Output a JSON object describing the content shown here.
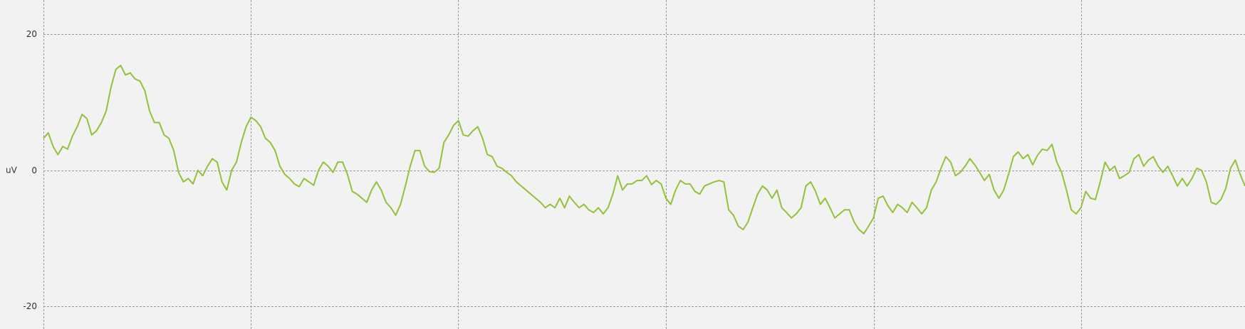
{
  "chart_data": {
    "type": "line",
    "ylabel": "uV",
    "ylim": [
      -23.3,
      25
    ],
    "yticks": [
      -20,
      0,
      20
    ],
    "grid": true,
    "series": [
      {
        "color": "#94c13a",
        "values": [
          4.7,
          5.5,
          3.5,
          2.3,
          3.5,
          3.1,
          5.0,
          6.4,
          8.2,
          7.6,
          5.2,
          5.8,
          7.0,
          8.7,
          12.2,
          14.8,
          15.4,
          14.0,
          14.3,
          13.4,
          13.1,
          11.7,
          8.7,
          7.0,
          7.0,
          5.2,
          4.7,
          2.9,
          -0.3,
          -1.7,
          -1.2,
          -2.0,
          0,
          -0.8,
          0.6,
          1.7,
          1.2,
          -1.7,
          -2.9,
          0,
          1.2,
          4.1,
          6.4,
          7.8,
          7.3,
          6.4,
          4.7,
          4.1,
          2.9,
          0.6,
          -0.6,
          -1.2,
          -2.0,
          -2.4,
          -1.2,
          -1.7,
          -2.2,
          0,
          1.2,
          0.6,
          -0.3,
          1.2,
          1.2,
          -0.6,
          -3.1,
          -3.5,
          -4.1,
          -4.7,
          -2.9,
          -1.7,
          -2.9,
          -4.7,
          -5.5,
          -6.6,
          -5.0,
          -2.3,
          0.6,
          2.9,
          2.9,
          0.6,
          -0.2,
          -0.3,
          0.3,
          4.1,
          5.2,
          6.6,
          7.3,
          5.2,
          5.0,
          5.8,
          6.4,
          4.7,
          2.3,
          2.0,
          0.6,
          0.3,
          -0.3,
          -0.8,
          -1.7,
          -2.3,
          -2.9,
          -3.5,
          -4.1,
          -4.7,
          -5.5,
          -5.0,
          -5.5,
          -4.1,
          -5.5,
          -3.8,
          -4.7,
          -5.5,
          -5.0,
          -5.8,
          -6.2,
          -5.5,
          -6.4,
          -5.5,
          -3.5,
          -0.8,
          -2.9,
          -2.0,
          -2.0,
          -1.5,
          -1.5,
          -0.8,
          -2.1,
          -1.5,
          -2.0,
          -4.1,
          -5.0,
          -2.9,
          -1.5,
          -2.0,
          -2.0,
          -3.1,
          -3.5,
          -2.3,
          -2.0,
          -1.7,
          -1.5,
          -1.7,
          -5.8,
          -6.6,
          -8.2,
          -8.7,
          -7.6,
          -5.5,
          -3.5,
          -2.3,
          -2.9,
          -4.1,
          -2.9,
          -5.5,
          -6.2,
          -7.0,
          -6.4,
          -5.5,
          -2.3,
          -1.7,
          -3.1,
          -5.0,
          -4.1,
          -5.5,
          -7.0,
          -6.4,
          -5.8,
          -5.8,
          -7.6,
          -8.7,
          -9.3,
          -8.2,
          -7.0,
          -4.1,
          -3.8,
          -5.2,
          -6.2,
          -5.0,
          -5.5,
          -6.2,
          -4.7,
          -5.5,
          -6.4,
          -5.5,
          -2.9,
          -1.7,
          0.3,
          2.0,
          1.2,
          -0.8,
          -0.3,
          0.6,
          1.7,
          0.8,
          -0.3,
          -1.5,
          -0.6,
          -2.9,
          -4.1,
          -2.9,
          -0.6,
          2.0,
          2.7,
          1.7,
          2.3,
          0.8,
          2.2,
          3.1,
          2.9,
          3.8,
          1.2,
          -0.3,
          -2.9,
          -5.8,
          -6.4,
          -5.5,
          -3.1,
          -4.1,
          -4.3,
          -1.7,
          1.2,
          0,
          0.6,
          -1.2,
          -0.8,
          -0.3,
          1.7,
          2.3,
          0.6,
          1.5,
          2.0,
          0.6,
          -0.3,
          0.6,
          -0.8,
          -2.3,
          -1.2,
          -2.3,
          -1.2,
          0.3,
          0,
          -1.7,
          -4.7,
          -5.0,
          -4.3,
          -2.7,
          0.3,
          1.5,
          -0.6,
          -2.3
        ]
      }
    ]
  }
}
